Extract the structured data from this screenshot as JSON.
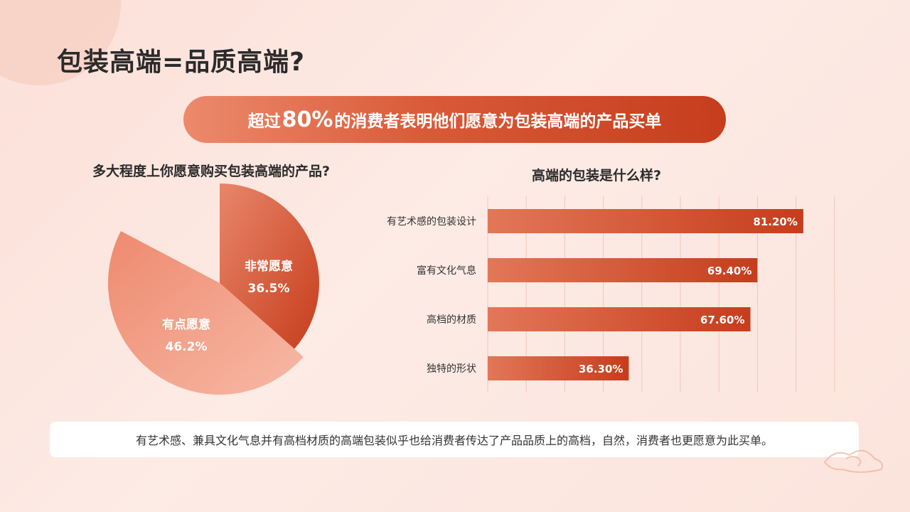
{
  "title": "包装高端=品质高端?",
  "banner": {
    "pre": "超过",
    "highlight": "80%",
    "post": "的消费者表明他们愿意为包装高端的产品买单"
  },
  "left_subtitle": "多大程度上你愿意购买包装高端的产品?",
  "right_subtitle": "高端的包装是什么样?",
  "footer_text": "有艺术感、兼具文化气息并有高档材质的高端包装似乎也给消费者传达了产品品质上的高档，自然，消费者也更愿意为此买单。",
  "colors": {
    "accent": "#c63d1c",
    "accent_light": "#ec8a6c",
    "pie_light": "#f3a48e"
  },
  "chart_data": [
    {
      "type": "pie",
      "title": "多大程度上你愿意购买包装高端的产品?",
      "slices": [
        {
          "name": "非常愿意",
          "value": 36.5,
          "label": "36.5%"
        },
        {
          "name": "有点愿意",
          "value": 46.2,
          "label": "46.2%"
        }
      ]
    },
    {
      "type": "bar",
      "orientation": "horizontal",
      "title": "高端的包装是什么样?",
      "categories": [
        "有艺术感的包装设计",
        "富有文化气息",
        "高档的材质",
        "独特的形状"
      ],
      "values": [
        81.2,
        69.4,
        67.6,
        36.3
      ],
      "value_labels": [
        "81.20%",
        "69.40%",
        "67.60%",
        "36.30%"
      ],
      "xlim": [
        0,
        90
      ],
      "grid": true
    }
  ]
}
